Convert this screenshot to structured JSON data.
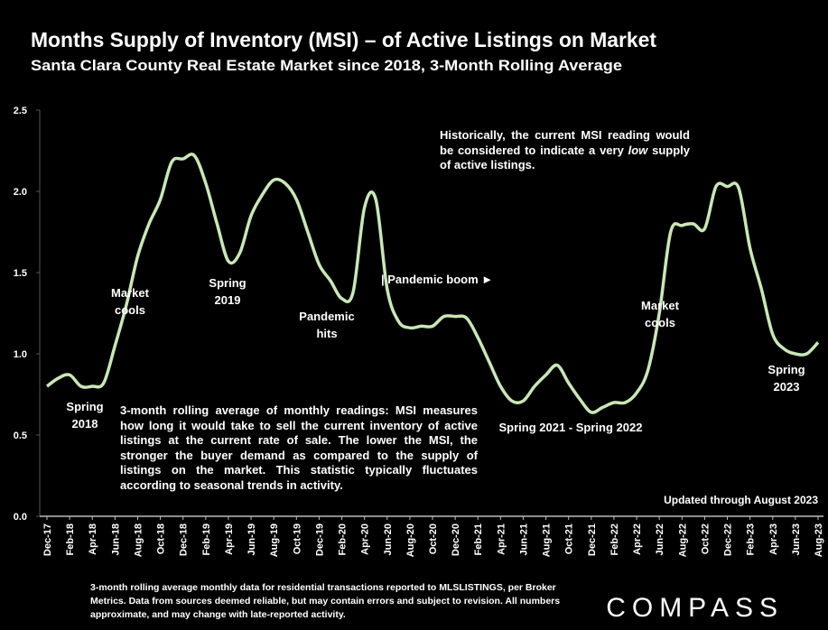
{
  "chart_data": {
    "type": "line",
    "title": "Months Supply of Inventory (MSI) – of Active Listings on Market",
    "subtitle": "Santa Clara County Real Estate Market since 2018, 3-Month Rolling Average",
    "categories": [
      "Dec-17",
      null,
      "Feb-18",
      null,
      "Apr-18",
      null,
      "Jun-18",
      null,
      "Aug-18",
      null,
      "Oct-18",
      null,
      "Dec-18",
      null,
      "Feb-19",
      null,
      "Apr-19",
      null,
      "Jun-19",
      null,
      "Aug-19",
      null,
      "Oct-19",
      null,
      "Dec-19",
      null,
      "Feb-20",
      null,
      "Apr-20",
      null,
      "Jun-20",
      null,
      "Aug-20",
      null,
      "Oct-20",
      null,
      "Dec-20",
      null,
      "Feb-21",
      null,
      "Apr-21",
      null,
      "Jun-21",
      null,
      "Aug-21",
      null,
      "Oct-21",
      null,
      "Dec-21",
      null,
      "Feb-22",
      null,
      "Apr-22",
      null,
      "Jun-22",
      null,
      "Aug-22",
      null,
      "Oct-22",
      null,
      "Dec-22",
      null,
      "Feb-23",
      null,
      "Apr-23",
      null,
      "Jun-23",
      null,
      "Aug-23"
    ],
    "values": [
      0.8,
      0.85,
      0.87,
      0.8,
      0.8,
      0.82,
      1.05,
      1.3,
      1.6,
      1.8,
      1.95,
      2.18,
      2.2,
      2.22,
      2.05,
      1.8,
      1.57,
      1.62,
      1.85,
      1.98,
      2.07,
      2.05,
      1.95,
      1.75,
      1.55,
      1.45,
      1.34,
      1.38,
      1.9,
      1.95,
      1.4,
      1.2,
      1.16,
      1.17,
      1.17,
      1.23,
      1.23,
      1.22,
      1.1,
      0.95,
      0.8,
      0.71,
      0.71,
      0.8,
      0.87,
      0.93,
      0.82,
      0.72,
      0.64,
      0.67,
      0.7,
      0.7,
      0.76,
      0.9,
      1.25,
      1.75,
      1.79,
      1.8,
      1.77,
      2.03,
      2.03,
      2.02,
      1.65,
      1.4,
      1.12,
      1.03,
      1.0,
      1.0,
      1.07
    ],
    "color": "#c9e7b6",
    "ylim": [
      0,
      2.5
    ],
    "yticks": [
      {
        "value": 0,
        "label": "0.0"
      },
      0.5,
      {
        "value": 1,
        "label": "1.0"
      },
      1.5,
      {
        "value": 2,
        "label": "2.0"
      },
      2.5
    ],
    "grid": false,
    "annotations": [
      {
        "lines": [
          "Spring",
          "2018"
        ]
      },
      {
        "lines": [
          "Market",
          "cools"
        ]
      },
      {
        "lines": [
          "Spring",
          "2019"
        ]
      },
      {
        "lines": [
          "Pandemic",
          "hits"
        ]
      },
      {
        "lines": [
          "| Pandemic boom ►"
        ]
      },
      {
        "lines": [
          "Spring 2021 - Spring 2022"
        ]
      },
      {
        "lines": [
          "Market",
          "cools"
        ]
      },
      {
        "lines": [
          "Spring",
          "2023"
        ]
      }
    ],
    "note": {
      "before": "Historically, the current MSI reading would be considered to indicate a very",
      "emphasis": "low",
      "after": "supply of active listings."
    },
    "definition": "3-month rolling average of monthly readings: MSI measures how long it would take to sell the current inventory of active listings at the current rate of sale. The lower the MSI, the stronger the buyer demand as compared to the supply of listings on the market. This statistic typically fluctuates according to seasonal trends in activity.",
    "updated": "Updated through August 2023"
  },
  "footer": "3-month rolling average monthly data for residential transactions reported to MLSLISTINGS, per Broker Metrics. Data from sources deemed reliable, but may contain errors and subject to revision. All numbers approximate, and may change with late-reported activity.",
  "logo": "COMPASS"
}
